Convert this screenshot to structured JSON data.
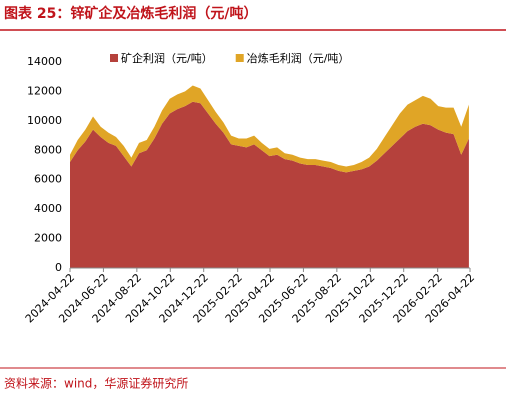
{
  "chart_data": {
    "type": "stacked_area",
    "title": "图表 25：锌矿企及冶炼毛利润（元/吨）",
    "source": "资料来源：wind，华源证券研究所",
    "x": [
      "2024-04-22",
      "2024-05-06",
      "2024-05-20",
      "2024-06-03",
      "2024-06-17",
      "2024-07-01",
      "2024-07-15",
      "2024-07-29",
      "2024-08-12",
      "2024-08-26",
      "2024-09-09",
      "2024-09-23",
      "2024-10-07",
      "2024-10-21",
      "2024-11-04",
      "2024-11-18",
      "2024-12-02",
      "2024-12-16",
      "2024-12-30",
      "2025-01-13",
      "2025-01-27",
      "2025-02-10",
      "2025-02-24",
      "2025-03-10",
      "2025-03-24",
      "2025-04-07",
      "2025-04-21",
      "2025-05-05",
      "2025-05-19",
      "2025-06-02",
      "2025-06-16",
      "2025-06-30",
      "2025-07-14",
      "2025-07-28",
      "2025-08-11",
      "2025-08-25",
      "2025-09-08",
      "2025-09-22",
      "2025-10-06",
      "2025-10-20",
      "2025-11-03",
      "2025-11-17",
      "2025-12-01",
      "2025-12-15",
      "2025-12-29",
      "2026-01-12",
      "2026-01-26",
      "2026-02-09",
      "2026-02-23",
      "2026-03-09",
      "2026-03-23",
      "2026-04-06",
      "2026-04-20"
    ],
    "series": [
      {
        "name": "矿企利润（元/吨）",
        "color": "#b5413c",
        "values": [
          7200,
          8000,
          8600,
          9400,
          8900,
          8500,
          8300,
          7600,
          6900,
          7800,
          8000,
          8800,
          9800,
          10500,
          10800,
          11000,
          11300,
          11200,
          10500,
          9800,
          9200,
          8400,
          8300,
          8200,
          8400,
          8000,
          7600,
          7700,
          7400,
          7300,
          7100,
          7000,
          7000,
          6900,
          6800,
          6600,
          6500,
          6600,
          6700,
          6900,
          7300,
          7800,
          8300,
          8800,
          9300,
          9600,
          9800,
          9700,
          9400,
          9200,
          9100,
          7700,
          8800
        ]
      },
      {
        "name": "冶炼毛利润（元/吨）",
        "color": "#e0a526",
        "values": [
          500,
          700,
          800,
          900,
          700,
          700,
          600,
          700,
          600,
          700,
          700,
          800,
          900,
          1000,
          1000,
          1000,
          1100,
          1000,
          900,
          800,
          700,
          600,
          500,
          600,
          600,
          500,
          500,
          500,
          400,
          400,
          400,
          400,
          400,
          400,
          400,
          400,
          400,
          400,
          500,
          600,
          800,
          1100,
          1400,
          1700,
          1800,
          1800,
          1900,
          1800,
          1600,
          1700,
          1800,
          1900,
          2300
        ]
      }
    ],
    "xlim": [
      "2024-04-22",
      "2026-04-22"
    ],
    "xticks": [
      "2024-04-22",
      "2024-06-22",
      "2024-08-22",
      "2024-10-22",
      "2024-12-22",
      "2025-02-22",
      "2025-04-22",
      "2025-06-22",
      "2025-08-22",
      "2025-10-22",
      "2025-12-22",
      "2026-02-22",
      "2026-04-22"
    ],
    "ylim": [
      0,
      14000
    ],
    "yticks": [
      0,
      2000,
      4000,
      6000,
      8000,
      10000,
      12000,
      14000
    ],
    "legend": "top"
  }
}
